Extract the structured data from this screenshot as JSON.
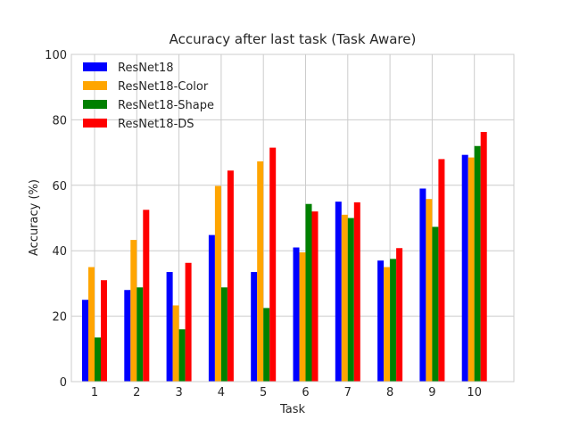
{
  "chart_data": {
    "type": "bar",
    "title": "Accuracy after last task (Task Aware)",
    "xlabel": "Task",
    "ylabel": "Accuracy (%)",
    "ylim": [
      0,
      100
    ],
    "yticks": [
      0,
      20,
      40,
      60,
      80,
      100
    ],
    "grid": true,
    "legend_position": "top-left",
    "categories": [
      "1",
      "2",
      "3",
      "4",
      "5",
      "6",
      "7",
      "8",
      "9",
      "10"
    ],
    "series": [
      {
        "name": "ResNet18",
        "color": "#0000ff",
        "values": [
          25.0,
          28.0,
          33.5,
          44.8,
          33.5,
          41.0,
          55.0,
          37.0,
          59.0,
          69.3
        ]
      },
      {
        "name": "ResNet18-Color",
        "color": "#ffa500",
        "values": [
          35.0,
          43.3,
          23.3,
          59.8,
          67.3,
          39.5,
          51.0,
          35.0,
          55.8,
          68.5
        ]
      },
      {
        "name": "ResNet18-Shape",
        "color": "#008000",
        "values": [
          13.5,
          28.8,
          16.0,
          28.8,
          22.5,
          54.3,
          50.0,
          37.5,
          47.3,
          72.0
        ]
      },
      {
        "name": "ResNet18-DS",
        "color": "#ff0000",
        "values": [
          31.0,
          52.5,
          36.3,
          64.5,
          71.5,
          52.0,
          54.8,
          40.8,
          68.0,
          76.3
        ]
      }
    ]
  }
}
